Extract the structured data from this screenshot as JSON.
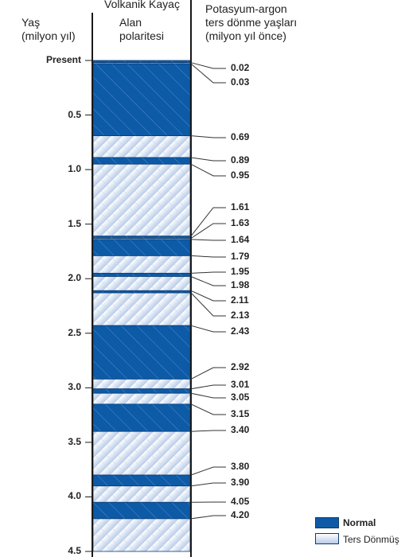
{
  "headers": {
    "age_line1": "Yaş",
    "age_line2": "(milyon yıl)",
    "rock": "Volkanik Kayaç",
    "field_line1": "Alan",
    "field_line2": "polaritesi",
    "ka_line1": "Potasyum-argon",
    "ka_line2": "ters dönme yaşları",
    "ka_line3": "(milyon yıl önce)"
  },
  "axis_ticks": [
    {
      "value": 0.0,
      "label": "Present"
    },
    {
      "value": 0.5,
      "label": "0.5"
    },
    {
      "value": 1.0,
      "label": "1.0"
    },
    {
      "value": 1.5,
      "label": "1.5"
    },
    {
      "value": 2.0,
      "label": "2.0"
    },
    {
      "value": 2.5,
      "label": "2.5"
    },
    {
      "value": 3.0,
      "label": "3.0"
    },
    {
      "value": 3.5,
      "label": "3.5"
    },
    {
      "value": 4.0,
      "label": "4.0"
    },
    {
      "value": 4.5,
      "label": "4.5"
    }
  ],
  "reversal_dates": [
    {
      "value": 0.02,
      "label": "0.02"
    },
    {
      "value": 0.03,
      "label": "0.03"
    },
    {
      "value": 0.69,
      "label": "0.69"
    },
    {
      "value": 0.89,
      "label": "0.89"
    },
    {
      "value": 0.95,
      "label": "0.95"
    },
    {
      "value": 1.61,
      "label": "1.61"
    },
    {
      "value": 1.63,
      "label": "1.63"
    },
    {
      "value": 1.64,
      "label": "1.64"
    },
    {
      "value": 1.79,
      "label": "1.79"
    },
    {
      "value": 1.95,
      "label": "1.95"
    },
    {
      "value": 1.98,
      "label": "1.98"
    },
    {
      "value": 2.11,
      "label": "2.11"
    },
    {
      "value": 2.13,
      "label": "2.13"
    },
    {
      "value": 2.43,
      "label": "2.43"
    },
    {
      "value": 2.92,
      "label": "2.92"
    },
    {
      "value": 3.01,
      "label": "3.01"
    },
    {
      "value": 3.05,
      "label": "3.05"
    },
    {
      "value": 3.15,
      "label": "3.15"
    },
    {
      "value": 3.4,
      "label": "3.40"
    },
    {
      "value": 3.8,
      "label": "3.80"
    },
    {
      "value": 3.9,
      "label": "3.90"
    },
    {
      "value": 4.05,
      "label": "4.05"
    },
    {
      "value": 4.2,
      "label": "4.20"
    }
  ],
  "polarity_intervals": [
    {
      "from": 0.0,
      "to": 0.02,
      "polarity": "normal"
    },
    {
      "from": 0.02,
      "to": 0.03,
      "polarity": "reversed"
    },
    {
      "from": 0.03,
      "to": 0.69,
      "polarity": "normal"
    },
    {
      "from": 0.69,
      "to": 0.89,
      "polarity": "reversed"
    },
    {
      "from": 0.89,
      "to": 0.95,
      "polarity": "normal"
    },
    {
      "from": 0.95,
      "to": 1.61,
      "polarity": "reversed"
    },
    {
      "from": 1.61,
      "to": 1.63,
      "polarity": "normal"
    },
    {
      "from": 1.63,
      "to": 1.64,
      "polarity": "reversed"
    },
    {
      "from": 1.64,
      "to": 1.79,
      "polarity": "normal"
    },
    {
      "from": 1.79,
      "to": 1.95,
      "polarity": "reversed"
    },
    {
      "from": 1.95,
      "to": 1.98,
      "polarity": "normal"
    },
    {
      "from": 1.98,
      "to": 2.11,
      "polarity": "reversed"
    },
    {
      "from": 2.11,
      "to": 2.13,
      "polarity": "normal"
    },
    {
      "from": 2.13,
      "to": 2.43,
      "polarity": "reversed"
    },
    {
      "from": 2.43,
      "to": 2.92,
      "polarity": "normal"
    },
    {
      "from": 2.92,
      "to": 3.01,
      "polarity": "reversed"
    },
    {
      "from": 3.01,
      "to": 3.05,
      "polarity": "normal"
    },
    {
      "from": 3.05,
      "to": 3.15,
      "polarity": "reversed"
    },
    {
      "from": 3.15,
      "to": 3.4,
      "polarity": "normal"
    },
    {
      "from": 3.4,
      "to": 3.8,
      "polarity": "reversed"
    },
    {
      "from": 3.8,
      "to": 3.9,
      "polarity": "normal"
    },
    {
      "from": 3.9,
      "to": 4.05,
      "polarity": "reversed"
    },
    {
      "from": 4.05,
      "to": 4.2,
      "polarity": "normal"
    },
    {
      "from": 4.2,
      "to": 4.5,
      "polarity": "reversed"
    }
  ],
  "legend": {
    "normal_label": "Normal",
    "reversed_label": "Ters Dönmüş"
  },
  "colors": {
    "normal": "#0d5aa7",
    "reversed": "#dde7f5",
    "border": "#1a1a1a",
    "leader": "#333333"
  }
}
